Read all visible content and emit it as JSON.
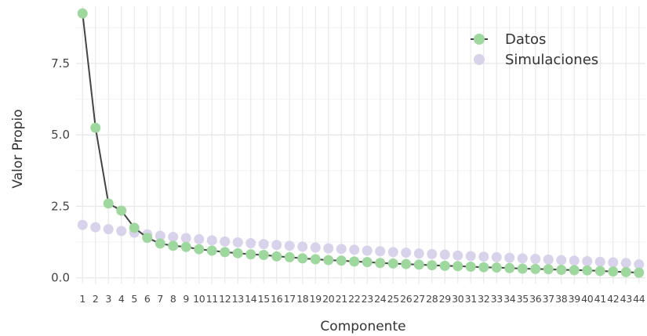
{
  "chart_data": {
    "type": "line",
    "xlabel": "Componente",
    "ylabel": "Valor Propio",
    "x": [
      1,
      2,
      3,
      4,
      5,
      6,
      7,
      8,
      9,
      10,
      11,
      12,
      13,
      14,
      15,
      16,
      17,
      18,
      19,
      20,
      21,
      22,
      23,
      24,
      25,
      26,
      27,
      28,
      29,
      30,
      31,
      32,
      33,
      34,
      35,
      36,
      37,
      38,
      39,
      40,
      41,
      42,
      43,
      44
    ],
    "ylim": [
      -0.2,
      9.5
    ],
    "yticks": [
      0.0,
      2.5,
      5.0,
      7.5
    ],
    "ytick_labels": [
      "0.0",
      "2.5",
      "5.0",
      "7.5"
    ],
    "grid": true,
    "legend_position": "top-right",
    "series": [
      {
        "name": "Datos",
        "color": "#9fd89f",
        "line_color": "#444444",
        "values": [
          9.25,
          5.25,
          2.6,
          2.35,
          1.75,
          1.4,
          1.2,
          1.12,
          1.08,
          1.0,
          0.95,
          0.9,
          0.86,
          0.82,
          0.8,
          0.75,
          0.72,
          0.68,
          0.65,
          0.62,
          0.6,
          0.57,
          0.55,
          0.52,
          0.5,
          0.48,
          0.46,
          0.44,
          0.42,
          0.41,
          0.39,
          0.37,
          0.36,
          0.34,
          0.32,
          0.31,
          0.3,
          0.28,
          0.27,
          0.26,
          0.24,
          0.22,
          0.2,
          0.18
        ]
      },
      {
        "name": "Simulaciones",
        "color": "#d8d2ea",
        "values": [
          1.85,
          1.77,
          1.7,
          1.64,
          1.58,
          1.52,
          1.47,
          1.43,
          1.39,
          1.35,
          1.31,
          1.27,
          1.24,
          1.21,
          1.18,
          1.15,
          1.12,
          1.09,
          1.06,
          1.03,
          1.01,
          0.98,
          0.95,
          0.93,
          0.9,
          0.88,
          0.85,
          0.83,
          0.81,
          0.78,
          0.76,
          0.74,
          0.72,
          0.7,
          0.68,
          0.66,
          0.64,
          0.62,
          0.6,
          0.58,
          0.56,
          0.54,
          0.52,
          0.47
        ]
      }
    ]
  }
}
